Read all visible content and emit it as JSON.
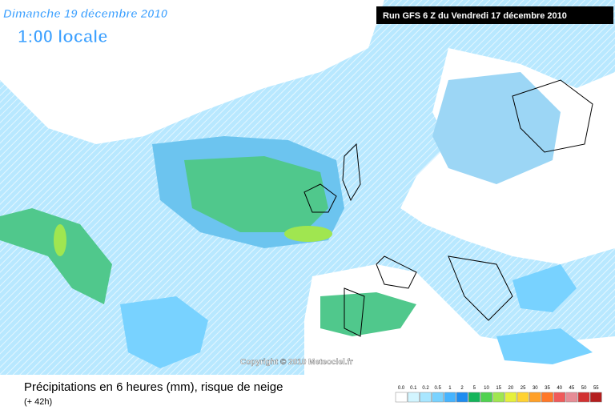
{
  "header": {
    "date": "Dimanche 19 décembre 2010",
    "time": "1:00 locale",
    "run": "Run GFS 6 Z du Vendredi 17 décembre 2010"
  },
  "copyright": "Copyright © 2010 Meteociel.fr",
  "footer": {
    "title": "Précipitations en 6 heures (mm), risque de neige",
    "lead": "(+ 42h)"
  },
  "legend": {
    "labels": [
      "0.0",
      "0.1",
      "0.2",
      "0.5",
      "1",
      "2",
      "5",
      "10",
      "15",
      "20",
      "25",
      "30",
      "35",
      "40",
      "45",
      "50",
      "55"
    ],
    "colors": [
      "#ffffff",
      "#d2f5ff",
      "#a8e6ff",
      "#78d2ff",
      "#46b4ff",
      "#1e8cf0",
      "#14b45a",
      "#50d250",
      "#a0e650",
      "#e6f03c",
      "#ffd232",
      "#ffa028",
      "#ff7828",
      "#f05a5a",
      "#e68c96",
      "#d23232",
      "#b41e1e"
    ]
  }
}
